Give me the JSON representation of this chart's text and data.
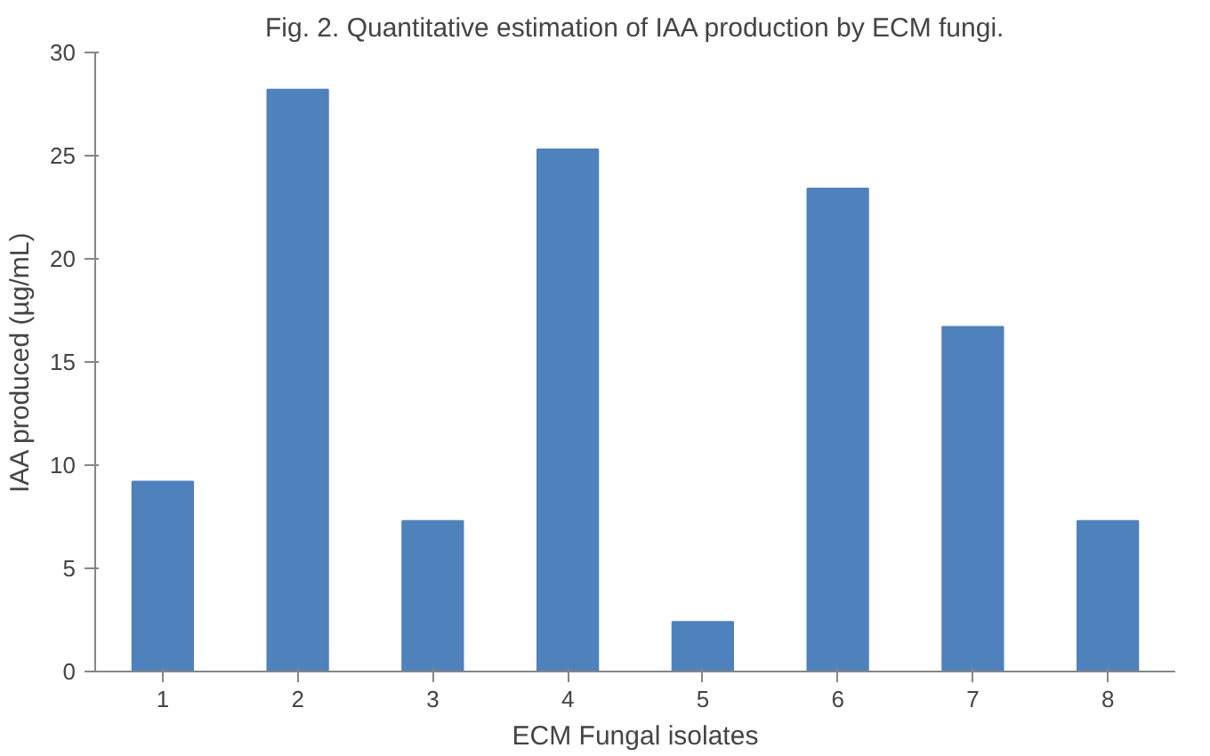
{
  "chart_data": {
    "type": "bar",
    "title": "Fig. 2. Quantitative estimation of IAA production by ECM fungi.",
    "xlabel": "ECM Fungal isolates",
    "ylabel": "IAA produced (µg/mL)",
    "categories": [
      "1",
      "2",
      "3",
      "4",
      "5",
      "6",
      "7",
      "8"
    ],
    "values": [
      9.2,
      28.2,
      7.3,
      25.3,
      2.4,
      23.4,
      16.7,
      7.3
    ],
    "color": "#4f81bd",
    "ylim": [
      0,
      30
    ],
    "yticks": [
      0,
      5,
      10,
      15,
      20,
      25,
      30
    ],
    "grid": false
  }
}
